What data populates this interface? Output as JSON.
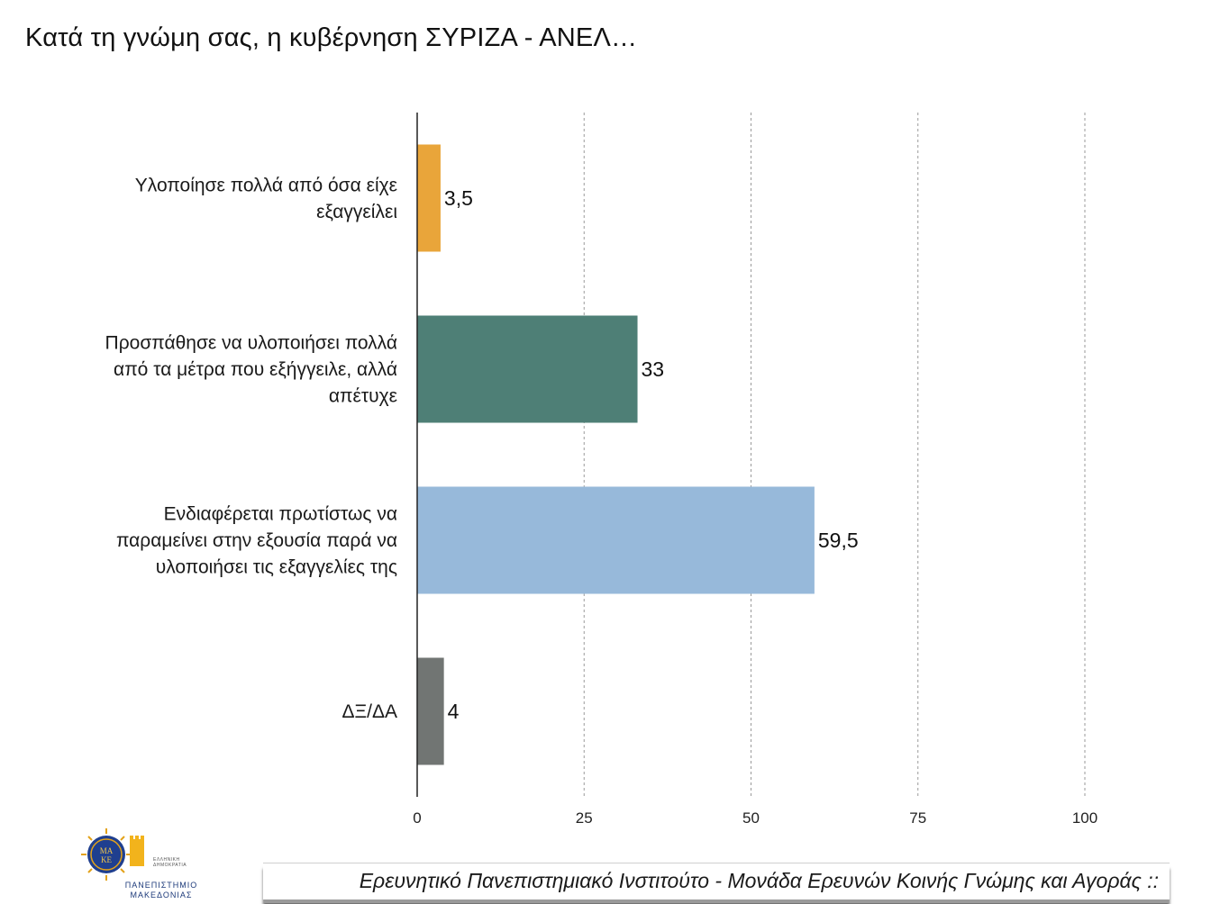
{
  "title": "Κατά τη γνώμη σας, η κυβέρνηση ΣΥΡΙΖΑ - ΑΝΕΛ…",
  "chart_data": {
    "type": "bar",
    "orientation": "horizontal",
    "title": "Κατά τη γνώμη σας, η κυβέρνηση ΣΥΡΙΖΑ - ΑΝΕΛ…",
    "categories": [
      [
        "Υλοποίησε πολλά από όσα είχε",
        "εξαγγείλει"
      ],
      [
        "Προσπάθησε να υλοποιήσει πολλά",
        "από τα μέτρα που εξήγγειλε, αλλά",
        "απέτυχε"
      ],
      [
        "Ενδιαφέρεται πρωτίστως να",
        "παραμείνει στην εξουσία παρά να",
        "υλοποιήσει τις εξαγγελίες της"
      ],
      [
        "ΔΞ/ΔΑ"
      ]
    ],
    "values": [
      3.5,
      33,
      59.5,
      4
    ],
    "value_labels": [
      "3,5",
      "33",
      "59,5",
      "4"
    ],
    "colors": [
      "#e9a53a",
      "#4e7f76",
      "#97b9da",
      "#717573"
    ],
    "xlim": [
      0,
      100
    ],
    "xticks": [
      0,
      25,
      50,
      75,
      100
    ],
    "xtick_labels": [
      "0",
      "25",
      "50",
      "75",
      "100"
    ],
    "grid": "vertical-dashed",
    "legend": "none"
  },
  "logo": {
    "icon": "university-seal-icon",
    "name": "ΠΑΝΕΠΙΣΤΗΜΙΟ\nΜΑΚΕΔΟΝΙΑΣ",
    "small_text": "ΕΛΛΗΝΙΚΗ\nΔΗΜΟΚΡΑΤΙΑ",
    "seal_letters": "ΜΑ\nΚΕ"
  },
  "footer": {
    "text": "Ερευνητικό Πανεπιστημιακό Ινστιτούτο - Μονάδα Ερευνών Κοινής Γνώμης και Αγοράς ::"
  }
}
